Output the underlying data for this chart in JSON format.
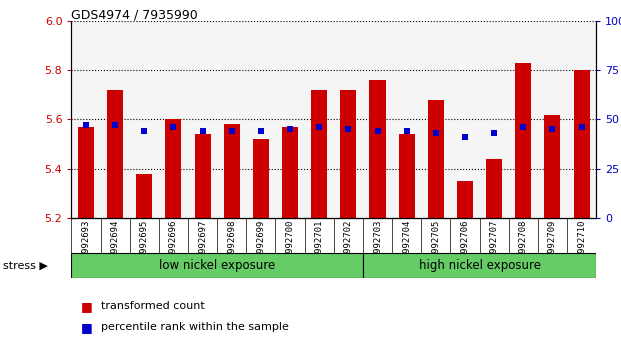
{
  "title": "GDS4974 / 7935990",
  "samples": [
    "GSM992693",
    "GSM992694",
    "GSM992695",
    "GSM992696",
    "GSM992697",
    "GSM992698",
    "GSM992699",
    "GSM992700",
    "GSM992701",
    "GSM992702",
    "GSM992703",
    "GSM992704",
    "GSM992705",
    "GSM992706",
    "GSM992707",
    "GSM992708",
    "GSM992709",
    "GSM992710"
  ],
  "transformed_count": [
    5.57,
    5.72,
    5.38,
    5.6,
    5.54,
    5.58,
    5.52,
    5.57,
    5.72,
    5.72,
    5.76,
    5.54,
    5.68,
    5.35,
    5.44,
    5.83,
    5.62,
    5.8
  ],
  "percentile_rank": [
    47,
    47,
    44,
    46,
    44,
    44,
    44,
    45,
    46,
    45,
    44,
    44,
    43,
    41,
    43,
    46,
    45,
    46
  ],
  "ylim_left": [
    5.2,
    6.0
  ],
  "ylim_right": [
    0,
    100
  ],
  "yticks_left": [
    5.2,
    5.4,
    5.6,
    5.8,
    6.0
  ],
  "yticks_right": [
    0,
    25,
    50,
    75,
    100
  ],
  "bar_color": "#cc0000",
  "dot_color": "#0000cc",
  "group1_count": 10,
  "group1_label": "low nickel exposure",
  "group2_label": "high nickel exposure",
  "stress_label": "stress",
  "legend_bar": "transformed count",
  "legend_dot": "percentile rank within the sample",
  "bar_width": 0.55,
  "base_value": 5.2,
  "plot_bg": "#f5f5f5",
  "xtick_bg": "#d3d3d3",
  "group_bg": "#66cc66"
}
